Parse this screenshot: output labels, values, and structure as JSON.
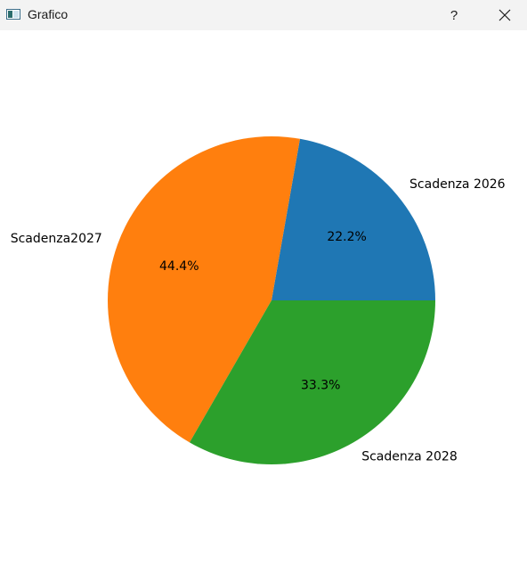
{
  "window": {
    "title": "Grafico",
    "help_label": "?",
    "icons": {
      "app": "chart-window-icon",
      "close": "close-icon"
    }
  },
  "chart_data": {
    "type": "pie",
    "labels": [
      "Scadenza 2026",
      "Scadenza2027",
      "Scadenza 2028"
    ],
    "values": [
      22.2,
      44.4,
      33.3
    ],
    "percent_labels": [
      "22.2%",
      "44.4%",
      "33.3%"
    ],
    "colors": [
      "#1f77b4",
      "#ff7f0e",
      "#2ca02c"
    ],
    "start_angle_deg": 0,
    "direction": "counterclockwise"
  }
}
